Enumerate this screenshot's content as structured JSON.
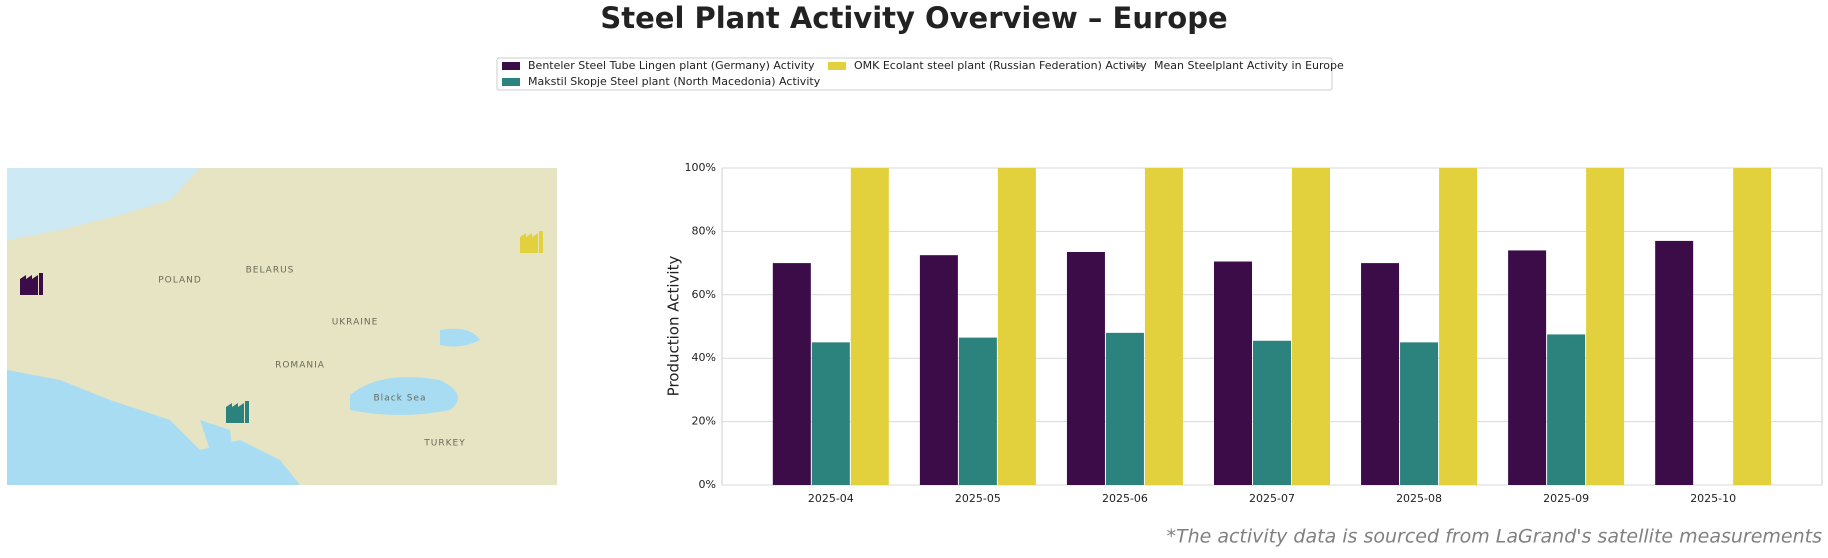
{
  "chart_data": {
    "type": "bar",
    "title": "Steel Plant Activity Overview – Europe",
    "categories": [
      "2025-04",
      "2025-05",
      "2025-06",
      "2025-07",
      "2025-08",
      "2025-09",
      "2025-10"
    ],
    "series": [
      {
        "name": "Benteler Steel Tube Lingen plant (Germany) Activity",
        "color": "#3b0c47",
        "values": [
          70,
          72.5,
          73.5,
          70.5,
          70,
          74,
          77
        ]
      },
      {
        "name": "Makstil Skopje Steel plant (North Macedonia) Activity",
        "color": "#2c837d",
        "values": [
          45,
          46.5,
          48,
          45.5,
          45,
          47.5,
          null
        ]
      },
      {
        "name": "OMK Ecolant steel plant (Russian Federation) Activity",
        "color": "#e2d13c",
        "values": [
          100,
          100,
          100,
          100,
          100,
          100,
          100
        ]
      },
      {
        "name": "Mean Steelplant Activity in Europe",
        "color": "#808080",
        "type": "line",
        "dash": true,
        "values": [
          null,
          null,
          null,
          null,
          null,
          null,
          null
        ]
      }
    ],
    "ylabel": "Production Activity",
    "ylim": [
      0,
      100
    ],
    "yticks": [
      {
        "value": 0,
        "label": "0%"
      },
      {
        "value": 20,
        "label": "20%"
      },
      {
        "value": 40,
        "label": "40%"
      },
      {
        "value": 60,
        "label": "60%"
      },
      {
        "value": 80,
        "label": "80%"
      },
      {
        "value": 100,
        "label": "100%"
      }
    ],
    "grid": true,
    "legend": "upper center",
    "footnote": "*The activity data is sourced from LaGrand's satellite measurements"
  },
  "map": {
    "labels": [
      "POLAND",
      "UKRAINE",
      "BELARUS",
      "ROMANIA",
      "TURKEY",
      "Black Sea"
    ]
  }
}
